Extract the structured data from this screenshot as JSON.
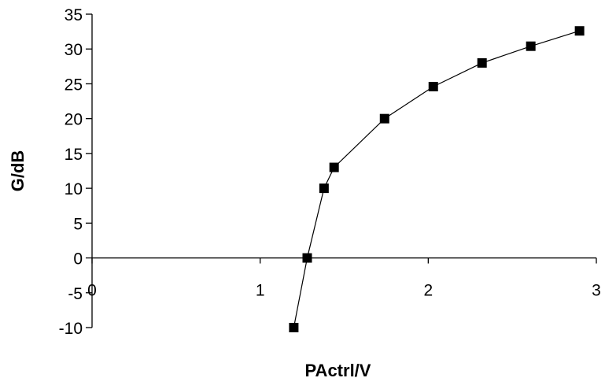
{
  "chart_data": {
    "type": "line",
    "title": "",
    "xlabel": "PActrl/V",
    "ylabel": "G/dB",
    "xlim": [
      0,
      3
    ],
    "ylim": [
      -10,
      35
    ],
    "x_ticks": [
      0,
      1,
      2,
      3
    ],
    "y_ticks": [
      -10,
      -5,
      0,
      5,
      10,
      15,
      20,
      25,
      30,
      35
    ],
    "grid": false,
    "legend": "none",
    "marker": "square",
    "series": [
      {
        "x": [
          1.2,
          1.28,
          1.38,
          1.44,
          1.74,
          2.03,
          2.32,
          2.61,
          2.9
        ],
        "y": [
          -10,
          0,
          10,
          13,
          20,
          24.6,
          28,
          30.4,
          32.6
        ]
      }
    ]
  }
}
